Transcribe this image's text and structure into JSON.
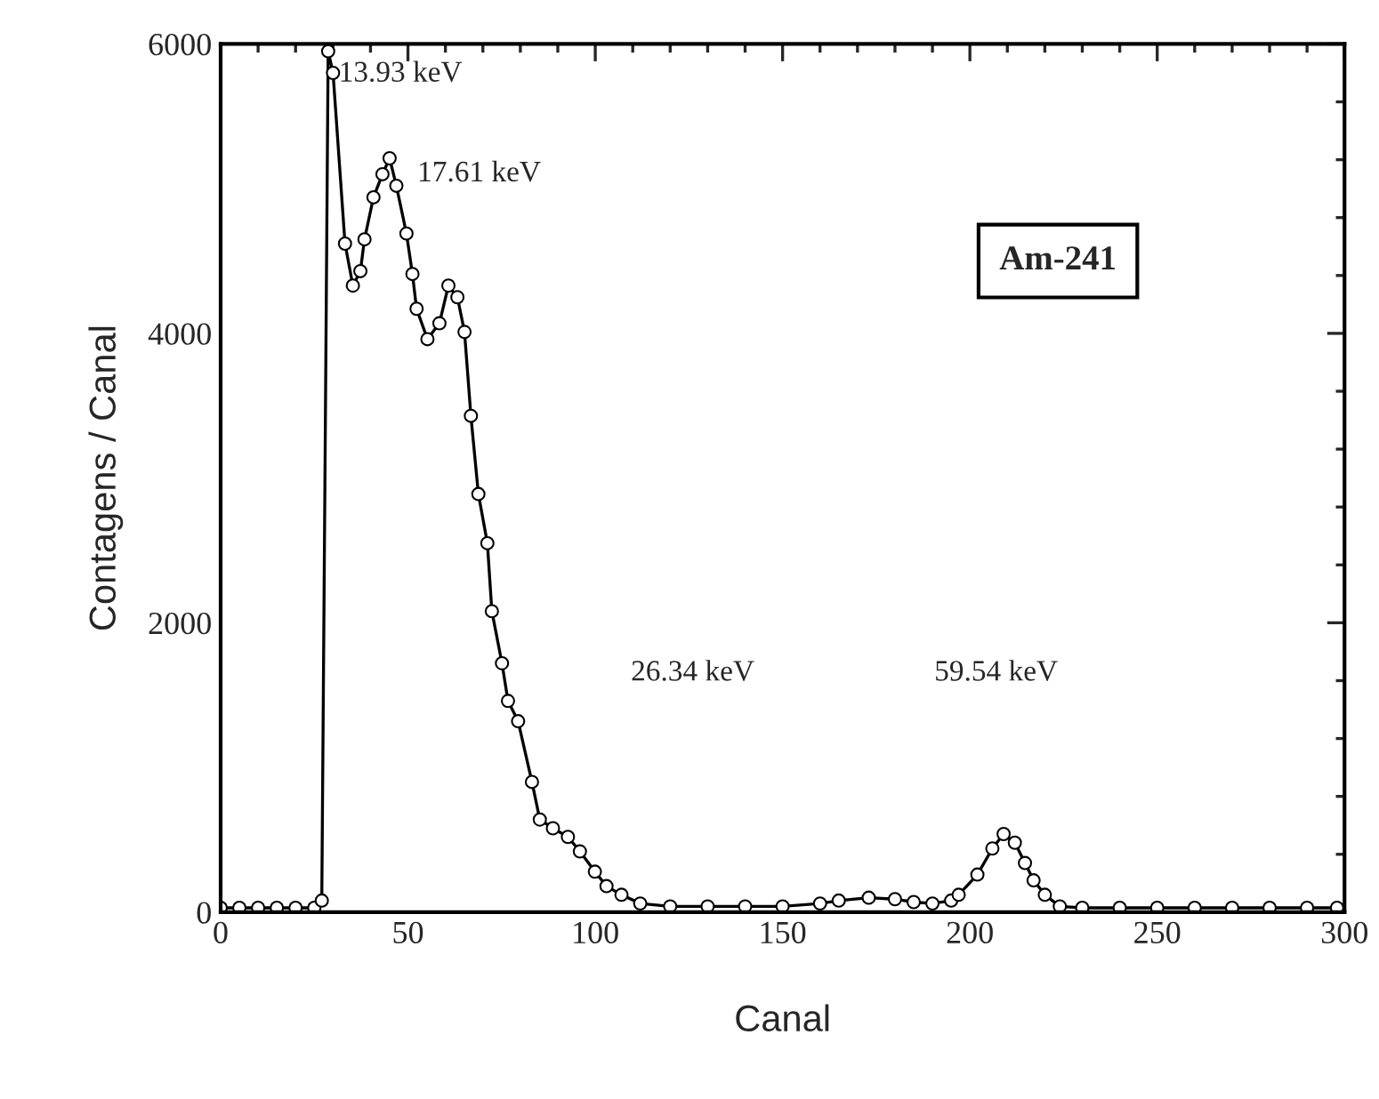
{
  "chart_data": {
    "type": "line",
    "xlabel": "Canal",
    "ylabel": "Contagens / Canal",
    "xlim": [
      0,
      300
    ],
    "ylim": [
      0,
      6000
    ],
    "xticks": [
      0,
      50,
      100,
      150,
      200,
      250,
      300
    ],
    "yticks": [
      0,
      2000,
      4000,
      6000
    ],
    "grid": false,
    "marker": "circle",
    "line_style": "solid",
    "series": [
      {
        "color": "#000000",
        "x": [
          0,
          5,
          10,
          15,
          20,
          25,
          27,
          28.7,
          30.0,
          33.2,
          35.3,
          37.3,
          38.4,
          40.8,
          43.2,
          45.1,
          46.9,
          49.6,
          51.2,
          52.3,
          55.2,
          58.4,
          60.8,
          63.2,
          65.1,
          66.8,
          68.8,
          71.2,
          72.4,
          75.1,
          76.7,
          79.4,
          83.1,
          85.2,
          88.7,
          92.7,
          95.9,
          99.9,
          103.0,
          107.0,
          112,
          120,
          130,
          140,
          150,
          160,
          165,
          173,
          180,
          185,
          190,
          195,
          197,
          202,
          206,
          209,
          212,
          214.7,
          217,
          220,
          224,
          230,
          240,
          250,
          260,
          270,
          280,
          290,
          298
        ],
        "values": [
          30,
          30,
          30,
          30,
          30,
          30,
          80,
          5950,
          5800,
          4620,
          4330,
          4430,
          4650,
          4940,
          5100,
          5210,
          5020,
          4690,
          4410,
          4170,
          3960,
          4070,
          4330,
          4250,
          4010,
          3430,
          2890,
          2550,
          2080,
          1720,
          1460,
          1320,
          900,
          640,
          580,
          520,
          420,
          280,
          180,
          120,
          60,
          40,
          40,
          40,
          40,
          60,
          80,
          100,
          90,
          70,
          60,
          80,
          120,
          260,
          440,
          540,
          480,
          340,
          220,
          120,
          40,
          30,
          30,
          30,
          30,
          30,
          30,
          30,
          30
        ]
      }
    ],
    "annotations": [
      "13.93 keV",
      "17.61 keV",
      "Am-241",
      "26.34 keV",
      "59.54 keV"
    ]
  }
}
